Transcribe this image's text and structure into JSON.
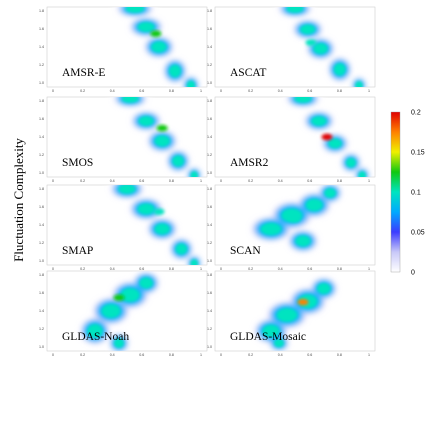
{
  "chart_data": {
    "type": "heatmap",
    "ylabel": "Fluctuation Complexity",
    "panel_tick_labels": {
      "x": [
        "0",
        "0.2",
        "0.4",
        "0.6",
        "0.8",
        "1"
      ],
      "y": [
        "1.0",
        "1.2",
        "1.4",
        "1.6",
        "1.8"
      ]
    },
    "xlim": [
      0,
      1
    ],
    "ylim": [
      1.0,
      1.9
    ],
    "colorbar": {
      "range": [
        0,
        0.2
      ],
      "ticks": [
        "0",
        "0.05",
        "0.1",
        "0.15",
        "0.2"
      ],
      "colors": [
        "#ffffff",
        "#c8c8f8",
        "#3c3cff",
        "#00aaff",
        "#00e4c0",
        "#10c810",
        "#f0f000",
        "#ff8000",
        "#e00000"
      ]
    },
    "panels": [
      {
        "name": "AMSR-E",
        "peak_x": 0.68,
        "peak_y": 1.6,
        "peak": 0.12
      },
      {
        "name": "ASCAT",
        "peak_x": 0.6,
        "peak_y": 1.5,
        "peak": 0.1
      },
      {
        "name": "SMOS",
        "peak_x": 0.72,
        "peak_y": 1.55,
        "peak": 0.12
      },
      {
        "name": "AMSR2",
        "peak_x": 0.7,
        "peak_y": 1.45,
        "peak": 0.19
      },
      {
        "name": "SMAP",
        "peak_x": 0.7,
        "peak_y": 1.6,
        "peak": 0.1
      },
      {
        "name": "SCAN",
        "peak_x": 0.5,
        "peak_y": 1.52,
        "peak": 0.1
      },
      {
        "name": "GLDAS-Noah",
        "peak_x": 0.45,
        "peak_y": 1.6,
        "peak": 0.12
      },
      {
        "name": "GLDAS-Mosaic",
        "peak_x": 0.55,
        "peak_y": 1.55,
        "peak": 0.18
      }
    ]
  }
}
